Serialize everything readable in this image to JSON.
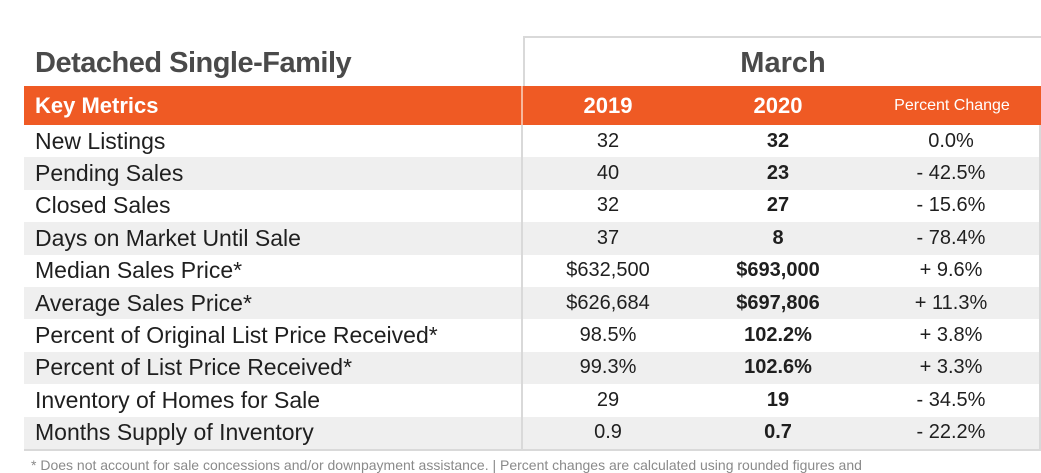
{
  "header": {
    "title": "Detached Single-Family",
    "month": "March",
    "key_metrics_label": "Key Metrics",
    "year_prev": "2019",
    "year_curr": "2020",
    "percent_change_label": "Percent Change"
  },
  "colors": {
    "accent": "#ef5a24",
    "stripe": "#efefef",
    "title_text": "#4a4a4a"
  },
  "rows": [
    {
      "label": "New Listings",
      "y2019": "32",
      "y2020": "32",
      "pct": "0.0%"
    },
    {
      "label": "Pending Sales",
      "y2019": "40",
      "y2020": "23",
      "pct": "- 42.5%"
    },
    {
      "label": "Closed Sales",
      "y2019": "32",
      "y2020": "27",
      "pct": "- 15.6%"
    },
    {
      "label": "Days on Market Until Sale",
      "y2019": "37",
      "y2020": "8",
      "pct": "- 78.4%"
    },
    {
      "label": "Median Sales Price*",
      "y2019": "$632,500",
      "y2020": "$693,000",
      "pct": "+ 9.6%"
    },
    {
      "label": "Average Sales Price*",
      "y2019": "$626,684",
      "y2020": "$697,806",
      "pct": "+ 11.3%"
    },
    {
      "label": "Percent of Original List Price Received*",
      "y2019": "98.5%",
      "y2020": "102.2%",
      "pct": "+ 3.8%"
    },
    {
      "label": "Percent of List Price Received*",
      "y2019": "99.3%",
      "y2020": "102.6%",
      "pct": "+ 3.3%"
    },
    {
      "label": "Inventory of Homes for Sale",
      "y2019": "29",
      "y2020": "19",
      "pct": "- 34.5%"
    },
    {
      "label": "Months Supply of Inventory",
      "y2019": "0.9",
      "y2020": "0.7",
      "pct": "- 22.2%"
    }
  ],
  "footnote": "* Does not account for sale concessions and/or downpayment assistance.  |  Percent changes are calculated using rounded figures and"
}
